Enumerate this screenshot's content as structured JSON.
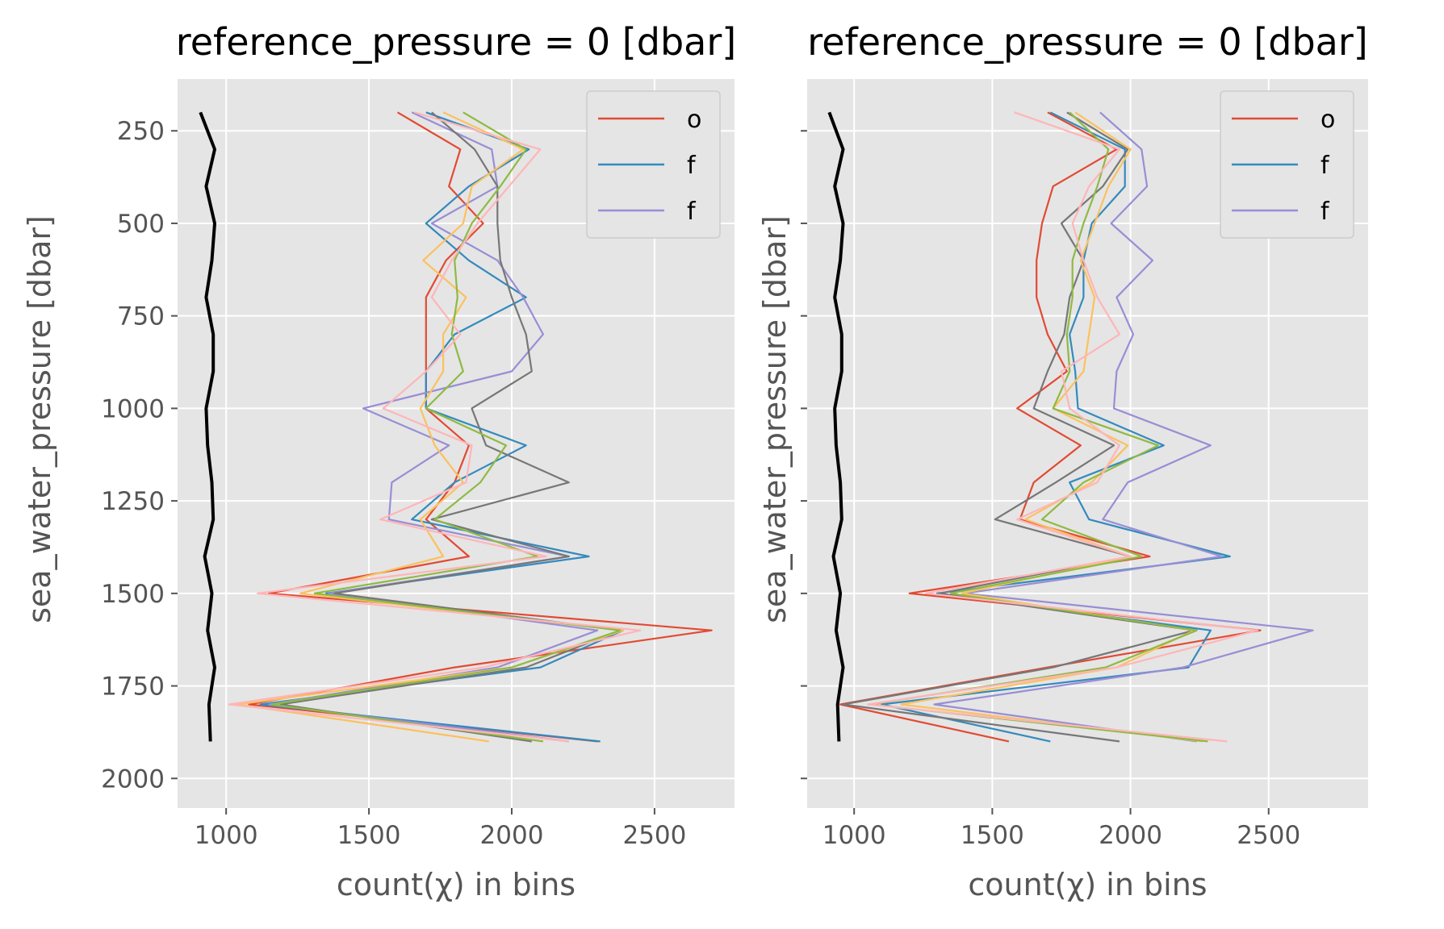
{
  "chart_data": [
    {
      "type": "line",
      "title": "reference_pressure = 0 [dbar]",
      "xlabel": "count(χ) in bins",
      "ylabel": "sea_water_pressure [dbar]",
      "xlim": [
        830,
        2780
      ],
      "ylim": [
        2080,
        110
      ],
      "y_inverted": true,
      "xticks": [
        1000,
        1500,
        2000,
        2500
      ],
      "yticks": [
        250,
        500,
        750,
        1000,
        1250,
        1500,
        1750,
        2000
      ],
      "show_ytick_labels": true,
      "legend": {
        "location": "top-right",
        "entries": [
          {
            "label": "o",
            "color": "#E24A33"
          },
          {
            "label": "f",
            "color": "#348ABD"
          },
          {
            "label": "f",
            "color": "#988ED5"
          }
        ]
      },
      "depths": [
        200,
        300,
        400,
        500,
        600,
        700,
        800,
        900,
        1000,
        1100,
        1200,
        1300,
        1400,
        1500,
        1600,
        1700,
        1800,
        1900
      ],
      "mean_profile": {
        "color": "#000000",
        "values": [
          910,
          960,
          930,
          960,
          950,
          930,
          955,
          955,
          930,
          935,
          950,
          955,
          925,
          950,
          935,
          960,
          940,
          945
        ]
      },
      "series": [
        {
          "color": "#E24A33",
          "values": [
            1600,
            1820,
            1780,
            1900,
            1770,
            1700,
            1700,
            1700,
            1700,
            1850,
            1800,
            1700,
            1850,
            1150,
            2700,
            1800,
            1080,
            2300
          ]
        },
        {
          "color": "#348ABD",
          "values": [
            1700,
            2060,
            1850,
            1700,
            1850,
            2050,
            1800,
            1700,
            1700,
            2050,
            1800,
            1650,
            2270,
            1350,
            2390,
            2100,
            1120,
            2310
          ]
        },
        {
          "color": "#988ED5",
          "values": [
            1650,
            1930,
            1950,
            1720,
            1950,
            2040,
            2110,
            2000,
            1480,
            1780,
            1580,
            1570,
            2200,
            1360,
            2300,
            1950,
            1150,
            2200
          ]
        },
        {
          "color": "#777777",
          "values": [
            1720,
            1870,
            1950,
            1950,
            1960,
            2000,
            2050,
            2070,
            1860,
            1910,
            2200,
            1720,
            2200,
            1380,
            2380,
            2050,
            1190,
            2070
          ]
        },
        {
          "color": "#FBC15E",
          "values": [
            1760,
            2040,
            1860,
            1830,
            1690,
            1840,
            1760,
            1760,
            1680,
            1730,
            1830,
            1680,
            1760,
            1260,
            2390,
            2000,
            1040,
            1920
          ]
        },
        {
          "color": "#8EBA42",
          "values": [
            1830,
            2050,
            1960,
            1860,
            1800,
            1810,
            1790,
            1830,
            1700,
            1980,
            1890,
            1730,
            2090,
            1310,
            2380,
            2000,
            1160,
            2110
          ]
        },
        {
          "color": "#FFB5B8",
          "values": [
            1660,
            2100,
            1990,
            1880,
            1790,
            1720,
            1820,
            1700,
            1550,
            1860,
            1840,
            1540,
            2120,
            1110,
            2450,
            1900,
            1010,
            2200
          ]
        }
      ]
    },
    {
      "type": "line",
      "title": "reference_pressure = 0 [dbar]",
      "xlabel": "count(χ) in bins",
      "ylabel": "sea_water_pressure [dbar]",
      "xlim": [
        830,
        2860
      ],
      "ylim": [
        2080,
        110
      ],
      "y_inverted": true,
      "xticks": [
        1000,
        1500,
        2000,
        2500
      ],
      "yticks": [
        250,
        500,
        750,
        1000,
        1250,
        1500,
        1750,
        2000
      ],
      "show_ytick_labels": false,
      "legend": {
        "location": "top-right",
        "entries": [
          {
            "label": "o",
            "color": "#E24A33"
          },
          {
            "label": "f",
            "color": "#348ABD"
          },
          {
            "label": "f",
            "color": "#988ED5"
          }
        ]
      },
      "depths": [
        200,
        300,
        400,
        500,
        600,
        700,
        800,
        900,
        1000,
        1100,
        1200,
        1300,
        1400,
        1500,
        1600,
        1700,
        1800,
        1900
      ],
      "mean_profile": {
        "color": "#000000",
        "values": [
          910,
          960,
          930,
          960,
          950,
          930,
          955,
          955,
          930,
          935,
          950,
          955,
          925,
          950,
          935,
          960,
          940,
          945
        ]
      },
      "series": [
        {
          "color": "#E24A33",
          "values": [
            1700,
            1950,
            1720,
            1680,
            1660,
            1660,
            1700,
            1770,
            1590,
            1820,
            1650,
            1600,
            2070,
            1200,
            2470,
            1700,
            950,
            1560
          ]
        },
        {
          "color": "#348ABD",
          "values": [
            1710,
            1980,
            1980,
            1860,
            1830,
            1830,
            1780,
            1800,
            1810,
            2120,
            1780,
            1850,
            2360,
            1300,
            2290,
            2210,
            1100,
            1710
          ]
        },
        {
          "color": "#988ED5",
          "values": [
            1890,
            2040,
            2060,
            1930,
            2080,
            1950,
            2010,
            1950,
            1940,
            2290,
            1990,
            1900,
            2330,
            1400,
            2660,
            2190,
            1290,
            2240
          ]
        },
        {
          "color": "#777777",
          "values": [
            1770,
            1990,
            1900,
            1750,
            1830,
            1780,
            1760,
            1700,
            1650,
            1940,
            1730,
            1510,
            2000,
            1310,
            2230,
            1720,
            960,
            1960
          ]
        },
        {
          "color": "#FBC15E",
          "values": [
            1800,
            2000,
            1920,
            1870,
            1820,
            1870,
            1850,
            1830,
            1720,
            1990,
            1860,
            1620,
            2000,
            1390,
            2230,
            1950,
            1170,
            2260
          ]
        },
        {
          "color": "#8EBA42",
          "values": [
            1780,
            1920,
            1880,
            1830,
            1790,
            1790,
            1770,
            1780,
            1720,
            2100,
            1830,
            1680,
            2040,
            1350,
            2240,
            1910,
            1060,
            2280
          ]
        },
        {
          "color": "#FFB5B8",
          "values": [
            1580,
            1960,
            1850,
            1790,
            1830,
            1880,
            1960,
            1750,
            1780,
            1960,
            1880,
            1590,
            2000,
            1260,
            2460,
            1950,
            1050,
            2350
          ]
        }
      ]
    }
  ]
}
